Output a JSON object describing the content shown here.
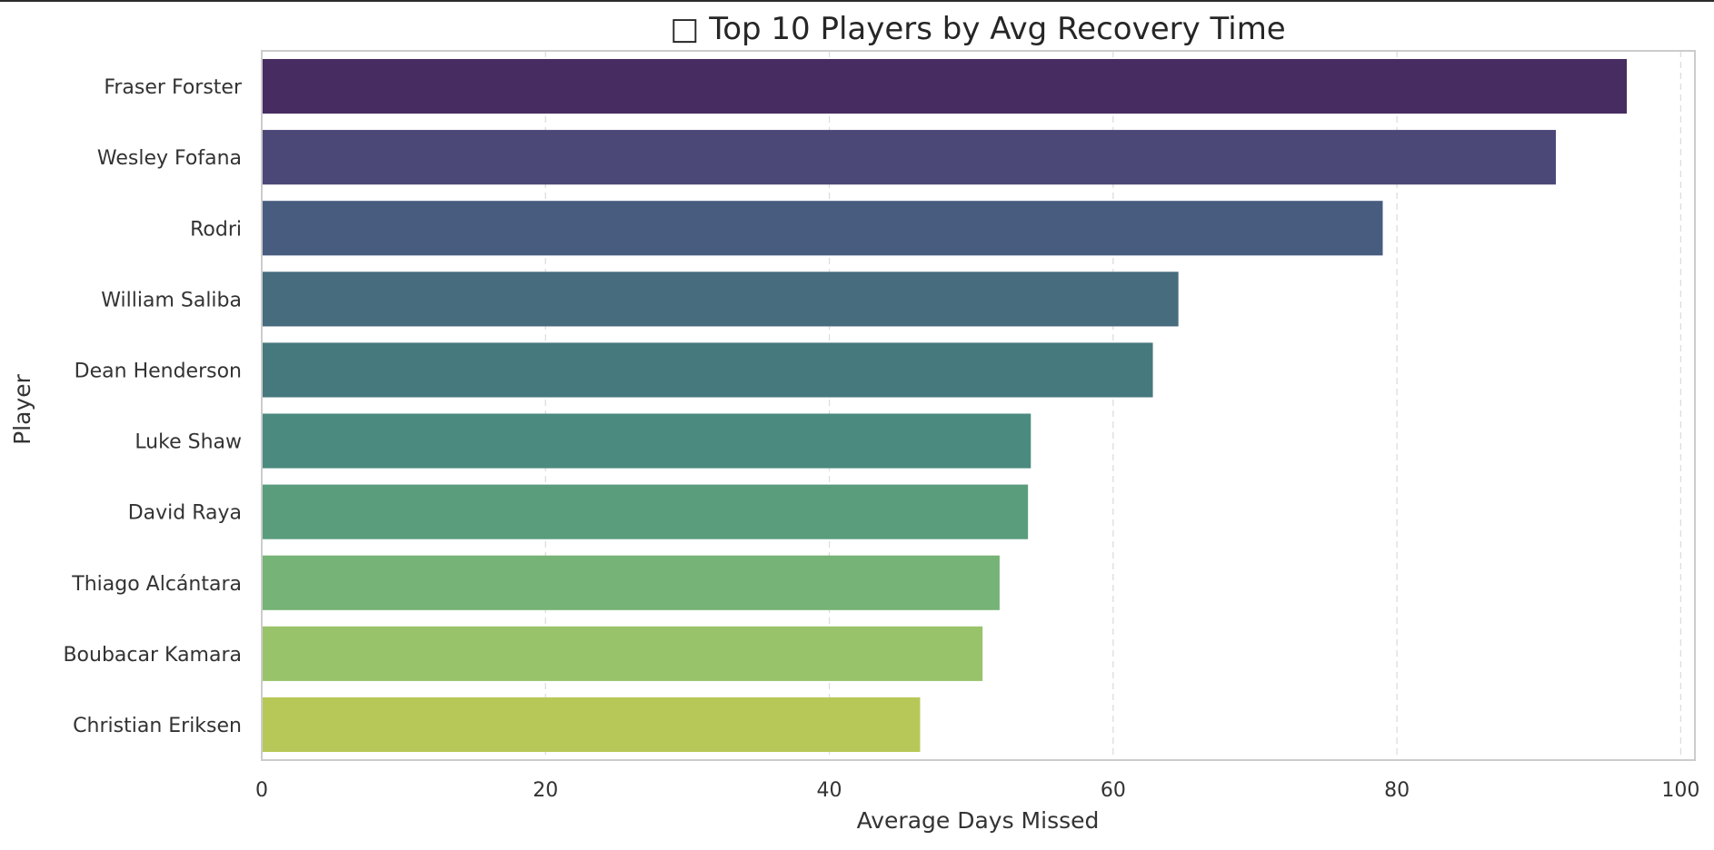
{
  "chart_data": {
    "type": "bar",
    "orientation": "horizontal",
    "title": "□ Top 10 Players by Avg Recovery Time",
    "xlabel": "Average Days Missed",
    "ylabel": "Player",
    "categories": [
      "Fraser Forster",
      "Wesley Fofana",
      "Rodri",
      "William Saliba",
      "Dean Henderson",
      "Luke Shaw",
      "David Raya",
      "Thiago Alcántara",
      "Boubacar Kamara",
      "Christian Eriksen"
    ],
    "values": [
      96.2,
      91.2,
      79.0,
      64.6,
      62.8,
      54.2,
      54.0,
      52.0,
      50.8,
      46.4
    ],
    "colors": [
      "#472c61",
      "#4b4878",
      "#485c80",
      "#476c7e",
      "#46797e",
      "#4b8a7f",
      "#5a9d7c",
      "#76b376",
      "#98c36a",
      "#b8c858"
    ],
    "xlim": [
      0,
      101
    ],
    "xticks": [
      "0",
      "20",
      "40",
      "60",
      "80",
      "100"
    ],
    "xtick_values": [
      0,
      20,
      40,
      60,
      80,
      100
    ],
    "grid": true,
    "legend": "none"
  }
}
